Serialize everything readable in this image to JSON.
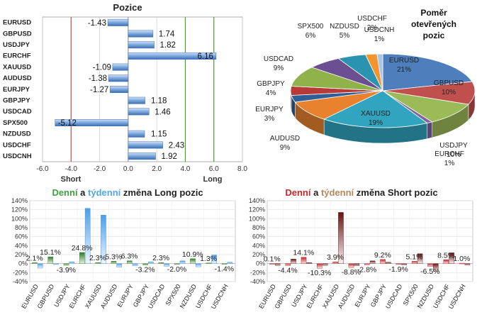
{
  "chart_data": [
    {
      "type": "bar",
      "orientation": "horizontal",
      "title": "Pozice",
      "categories": [
        "EURUSD",
        "GBPUSD",
        "USDJPY",
        "EURCHF",
        "XAUUSD",
        "AUDUSD",
        "EURJPY",
        "GBPJPY",
        "USDCAD",
        "SPX500",
        "NZDUSD",
        "USDCHF",
        "USDCNH"
      ],
      "values": [
        -1.43,
        1.74,
        1.82,
        6.16,
        -1.09,
        -1.38,
        -1.27,
        1.18,
        1.46,
        -5.12,
        1.15,
        2.43,
        1.92
      ],
      "value_labels": [
        "-1.43",
        "1.74",
        "1.82",
        "6.16",
        "-1.09",
        "-1.38",
        "-1.27",
        "1.18",
        "1.46",
        "-5.12",
        "1.15",
        "2.43",
        "1.92"
      ],
      "xlim": [
        -6,
        8
      ],
      "xticks": [
        "-6.0",
        "-4.0",
        "-2.0",
        "0.0",
        "2.0",
        "4.0",
        "6.0",
        "8.0"
      ],
      "annotations": [
        "Short",
        "Long"
      ],
      "colors": {
        "bar": "#6e9bd4",
        "short_line": "#c0504d",
        "long_line": "#4aa02c"
      }
    },
    {
      "type": "pie",
      "title_lines": [
        "Poměr",
        "otevřených",
        "pozic"
      ],
      "slices": [
        {
          "name": "EURUSD",
          "value": 21,
          "label": "21%",
          "color": "#4e7fbc"
        },
        {
          "name": "GBPUSD",
          "value": 10,
          "label": "10%",
          "color": "#c0504d"
        },
        {
          "name": "USDJPY",
          "value": 10,
          "label": "10%",
          "color": "#9bbb59"
        },
        {
          "name": "EURCHF",
          "value": 1,
          "label": "1%",
          "color": "#8064a2"
        },
        {
          "name": "XAUUSD",
          "value": 19,
          "label": "19%",
          "color": "#31a4bf"
        },
        {
          "name": "AUDUSD",
          "value": 9,
          "label": "9%",
          "color": "#e8822e"
        },
        {
          "name": "EURJPY",
          "value": 3,
          "label": "3%",
          "color": "#2e5f96"
        },
        {
          "name": "GBPJPY",
          "value": 4,
          "label": "4%",
          "color": "#b83a37"
        },
        {
          "name": "USDCAD",
          "value": 9,
          "label": "9%",
          "color": "#8fb24b"
        },
        {
          "name": "SPX500",
          "value": 6,
          "label": "6%",
          "color": "#6c4e92"
        },
        {
          "name": "NZDUSD",
          "value": 5,
          "label": "5%",
          "color": "#2a94b0"
        },
        {
          "name": "USDCHF",
          "value": 2,
          "label": "2%",
          "color": "#f0952f"
        },
        {
          "name": "USDCNH",
          "value": 1,
          "label": "1%",
          "color": "#a9c4e8"
        }
      ]
    },
    {
      "type": "bar",
      "title_parts": [
        {
          "text": "Denní",
          "color": "#3ea142"
        },
        {
          "text": " a ",
          "color": "#222222"
        },
        {
          "text": "týdenní",
          "color": "#4fa9e8"
        },
        {
          "text": " změna Long pozic",
          "color": "#222222"
        }
      ],
      "categories": [
        "EURUSD",
        "GBPUSD",
        "USDJPY",
        "EURCHF",
        "XAUUSD",
        "AUDUSD",
        "EURJPY",
        "GBPJPY",
        "USDCAD",
        "SPX500",
        "NZDUSD",
        "USDCHF",
        "USDCNH"
      ],
      "series": [
        {
          "name": "Denní",
          "color": "#3a8f2e",
          "values": [
            2.1,
            15.1,
            -3.9,
            24.8,
            2.3,
            5.3,
            6.3,
            -3.2,
            2.3,
            -2.0,
            10.9,
            1.3,
            -1.4
          ]
        },
        {
          "name": "týdenní",
          "color": "#6fb2ec",
          "values": [
            -10,
            -2,
            4,
            123,
            108,
            -8,
            -5,
            4,
            -6,
            6,
            -7,
            19,
            3
          ]
        }
      ],
      "value_labels": [
        "2.1%",
        "15.1%",
        "-3.9%",
        "24.8%",
        "2.3%",
        "5.3%",
        "6.3%",
        "-3.2%",
        "2.3%",
        "-2.0%",
        "10.9%",
        "1.3%",
        "-1.4%"
      ],
      "ylim": [
        -40,
        140
      ],
      "yticks": [
        "-40%",
        "-20%",
        "0%",
        "20%",
        "40%",
        "60%",
        "80%",
        "100%",
        "120%",
        "140%"
      ]
    },
    {
      "type": "bar",
      "title_parts": [
        {
          "text": "Denní",
          "color": "#c8282c"
        },
        {
          "text": " a ",
          "color": "#222222"
        },
        {
          "text": "týdenní",
          "color": "#b8865a"
        },
        {
          "text": " změna Short pozic",
          "color": "#222222"
        }
      ],
      "categories": [
        "EURUSD",
        "GBPUSD",
        "USDJPY",
        "EURCHF",
        "XAUUSD",
        "AUDUSD",
        "EURJPY",
        "GBPJPY",
        "USDCAD",
        "SPX500",
        "NZDUSD",
        "USDCHF",
        "USDCNH"
      ],
      "series": [
        {
          "name": "Denní",
          "color": "#c8282c",
          "values": [
            0.1,
            -4.4,
            14.1,
            -10.3,
            3.9,
            -8.8,
            -2.8,
            9.2,
            -1.9,
            5.1,
            -6.5,
            8.5,
            1.0
          ]
        },
        {
          "name": "týdenní",
          "color": "#7a1a1a",
          "values": [
            -4,
            10,
            2,
            -4,
            114,
            -5,
            6,
            3,
            -3,
            22,
            -17,
            24,
            -3
          ]
        }
      ],
      "value_labels": [
        "0.1%",
        "-4.4%",
        "14.1%",
        "-10.3%",
        "3.9%",
        "-8.8%",
        "-2.8%",
        "9.2%",
        "-1.9%",
        "5.1%",
        "-6.5%",
        "8.5%",
        "1.0%"
      ],
      "ylim": [
        -40,
        140
      ],
      "yticks": [
        "-40%",
        "-20%",
        "0%",
        "20%",
        "40%",
        "60%",
        "80%",
        "100%",
        "120%",
        "140%"
      ]
    }
  ]
}
